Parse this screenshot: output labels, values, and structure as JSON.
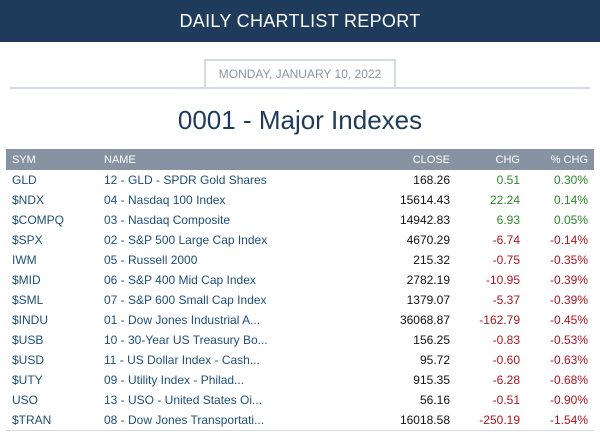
{
  "header": {
    "title": "DAILY CHARTLIST REPORT"
  },
  "report": {
    "date": "MONDAY, JANUARY 10, 2022",
    "list_title": "0001 - Major Indexes"
  },
  "table": {
    "columns": {
      "sym": "SYM",
      "name": "NAME",
      "close": "CLOSE",
      "chg": "CHG",
      "pct": "% CHG"
    },
    "rows": [
      {
        "sym": "GLD",
        "name": "12 - GLD - SPDR Gold Shares",
        "close": "168.26",
        "chg": "0.51",
        "pct": "0.30%",
        "dir": "up"
      },
      {
        "sym": "$NDX",
        "name": "04 - Nasdaq 100 Index",
        "close": "15614.43",
        "chg": "22.24",
        "pct": "0.14%",
        "dir": "up"
      },
      {
        "sym": "$COMPQ",
        "name": "03 - Nasdaq Composite",
        "close": "14942.83",
        "chg": "6.93",
        "pct": "0.05%",
        "dir": "up"
      },
      {
        "sym": "$SPX",
        "name": "02 - S&P 500 Large Cap Index",
        "close": "4670.29",
        "chg": "-6.74",
        "pct": "-0.14%",
        "dir": "down"
      },
      {
        "sym": "IWM",
        "name": "05 - Russell 2000",
        "close": "215.32",
        "chg": "-0.75",
        "pct": "-0.35%",
        "dir": "down"
      },
      {
        "sym": "$MID",
        "name": "06 - S&P 400 Mid Cap Index",
        "close": "2782.19",
        "chg": "-10.95",
        "pct": "-0.39%",
        "dir": "down"
      },
      {
        "sym": "$SML",
        "name": "07 - S&P 600 Small Cap Index",
        "close": "1379.07",
        "chg": "-5.37",
        "pct": "-0.39%",
        "dir": "down"
      },
      {
        "sym": "$INDU",
        "name": "01 - Dow Jones Industrial A...",
        "close": "36068.87",
        "chg": "-162.79",
        "pct": "-0.45%",
        "dir": "down"
      },
      {
        "sym": "$USB",
        "name": "10 - 30-Year US Treasury Bo...",
        "close": "156.25",
        "chg": "-0.83",
        "pct": "-0.53%",
        "dir": "down"
      },
      {
        "sym": "$USD",
        "name": "11 - US Dollar Index - Cash...",
        "close": "95.72",
        "chg": "-0.60",
        "pct": "-0.63%",
        "dir": "down"
      },
      {
        "sym": "$UTY",
        "name": "09 - Utility Index - Philad...",
        "close": "915.35",
        "chg": "-6.28",
        "pct": "-0.68%",
        "dir": "down"
      },
      {
        "sym": "USO",
        "name": "13 - USO - United States Oi...",
        "close": "56.16",
        "chg": "-0.51",
        "pct": "-0.90%",
        "dir": "down"
      },
      {
        "sym": "$TRAN",
        "name": "08 - Dow Jones Transportati...",
        "close": "16018.58",
        "chg": "-250.19",
        "pct": "-1.54%",
        "dir": "down"
      }
    ]
  },
  "colors": {
    "header_bg": "#1f3b5c",
    "up": "#2a8a2a",
    "down": "#b0141c",
    "table_header_bg": "#8792a2"
  }
}
